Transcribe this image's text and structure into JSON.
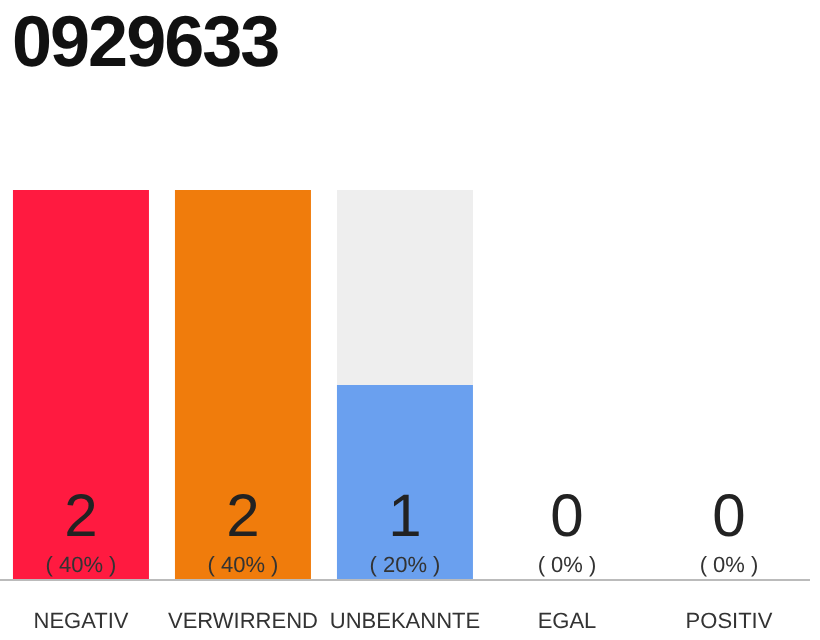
{
  "chart_data": {
    "type": "bar",
    "title": "0929633",
    "categories": [
      "NEGATIV",
      "VERWIRREND",
      "UNBEKANNTE",
      "EGAL",
      "POSITIV"
    ],
    "values": [
      2,
      2,
      1,
      0,
      0
    ],
    "colors": [
      "#ff1a40",
      "#f07c0c",
      "#6aa0ef",
      "#eeeeee",
      "#eeeeee"
    ],
    "tick_labels": "x",
    "data_labels": true,
    "grid": false,
    "legend": false,
    "annotations": [
      "( 40% )",
      "( 40% )",
      "( 20% )",
      "( 0% )",
      "( 0% )"
    ]
  }
}
